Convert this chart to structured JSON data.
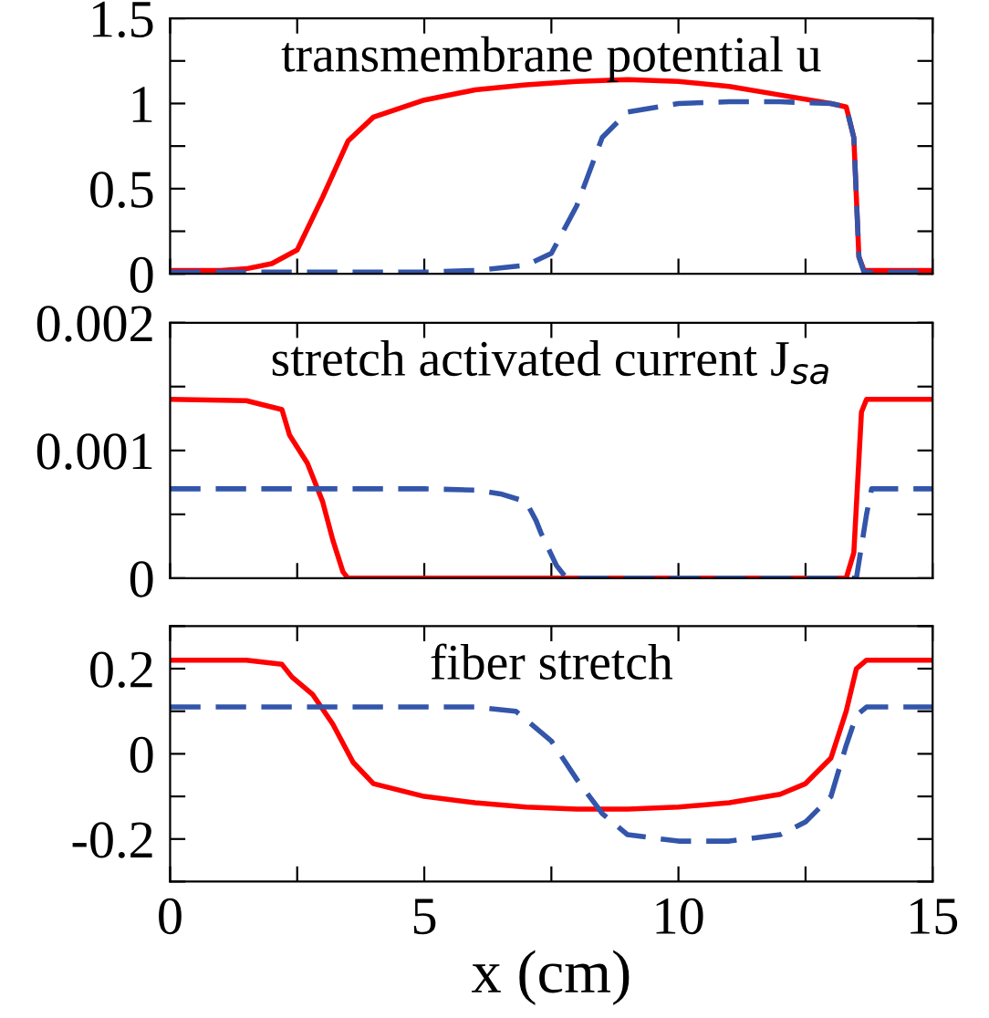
{
  "chart_data": [
    {
      "type": "line",
      "annotations": [
        "transmembrane potential u"
      ],
      "xlim": [
        0,
        15
      ],
      "xticks": [
        {
          "value": 0,
          "label": null
        },
        {
          "value": 2.5,
          "label": null
        },
        {
          "value": 5,
          "label": null
        },
        {
          "value": 7.5,
          "label": null
        },
        {
          "value": 10,
          "label": null
        },
        {
          "value": 12.5,
          "label": null
        },
        {
          "value": 15,
          "label": null
        }
      ],
      "ylim": [
        0,
        1.5
      ],
      "yticks": [
        0,
        {
          "value": 0.25,
          "label": null
        },
        0.5,
        {
          "value": 0.75,
          "label": null
        },
        1,
        {
          "value": 1.25,
          "label": null
        },
        1.5
      ],
      "tick_labels": "y",
      "grid": false,
      "legend": false,
      "series": [
        {
          "color": "#ff0000",
          "line_style": "solid",
          "x": [
            0,
            1,
            1.5,
            2,
            2.5,
            3,
            3.5,
            4,
            5,
            6,
            7,
            8,
            9,
            10,
            11,
            12,
            13,
            13.3,
            13.45,
            13.55,
            13.65,
            15
          ],
          "values": [
            0.02,
            0.02,
            0.03,
            0.06,
            0.14,
            0.45,
            0.78,
            0.92,
            1.02,
            1.08,
            1.11,
            1.13,
            1.14,
            1.13,
            1.1,
            1.05,
            1.0,
            0.98,
            0.8,
            0.1,
            0.02,
            0.02
          ]
        },
        {
          "color": "#3355aa",
          "line_style": "dashed",
          "x": [
            0,
            5,
            6,
            7,
            7.5,
            8,
            8.5,
            9,
            10,
            11,
            12,
            13,
            13.3,
            13.45,
            13.55,
            13.65,
            15
          ],
          "values": [
            0.01,
            0.01,
            0.02,
            0.05,
            0.12,
            0.4,
            0.8,
            0.95,
            1.0,
            1.01,
            1.01,
            1.0,
            0.98,
            0.8,
            0.1,
            0.01,
            0.01
          ]
        }
      ]
    },
    {
      "type": "line",
      "annotations": [
        "stretch activated current J$_{sa}$"
      ],
      "xlim": [
        0,
        15
      ],
      "xticks": [
        {
          "value": 0,
          "label": null
        },
        {
          "value": 2.5,
          "label": null
        },
        {
          "value": 5,
          "label": null
        },
        {
          "value": 7.5,
          "label": null
        },
        {
          "value": 10,
          "label": null
        },
        {
          "value": 12.5,
          "label": null
        },
        {
          "value": 15,
          "label": null
        }
      ],
      "ylim": [
        0,
        0.002
      ],
      "yticks": [
        0,
        {
          "value": 0.0005,
          "label": null
        },
        0.001,
        {
          "value": 0.0015,
          "label": null
        },
        0.002
      ],
      "tick_labels": "y",
      "grid": false,
      "legend": false,
      "series": [
        {
          "color": "#ff0000",
          "line_style": "solid",
          "x": [
            0,
            1.5,
            2.2,
            2.35,
            2.7,
            3,
            3.2,
            3.4,
            3.5,
            13.3,
            13.45,
            13.6,
            13.7,
            15
          ],
          "values": [
            0.0014,
            0.00139,
            0.00132,
            0.00112,
            0.0009,
            0.0006,
            0.0003,
            5e-05,
            0,
            0,
            0.0002,
            0.0013,
            0.0014,
            0.0014
          ]
        },
        {
          "color": "#3355aa",
          "line_style": "dashed",
          "x": [
            0,
            5,
            6,
            6.5,
            7,
            7.2,
            7.3,
            7.6,
            7.8,
            13.5,
            13.7,
            13.8,
            15
          ],
          "values": [
            0.0007,
            0.0007,
            0.00069,
            0.00066,
            0.0006,
            0.00045,
            0.00035,
            0.0001,
            0,
            0,
            0.0005,
            0.0007,
            0.0007
          ]
        }
      ]
    },
    {
      "type": "line",
      "annotations": [
        "fiber stretch"
      ],
      "xlabel": "x (cm)",
      "xlim": [
        0,
        15
      ],
      "xticks": [
        0,
        {
          "value": 2.5,
          "label": null
        },
        5,
        {
          "value": 7.5,
          "label": null
        },
        10,
        {
          "value": 12.5,
          "label": null
        },
        15
      ],
      "ylim": [
        -0.3,
        0.3
      ],
      "yticks": [
        {
          "value": -0.3,
          "label": null
        },
        -0.2,
        {
          "value": -0.1,
          "label": null
        },
        0,
        {
          "value": 0.1,
          "label": null
        },
        0.2,
        {
          "value": 0.3,
          "label": null
        }
      ],
      "grid": false,
      "legend": false,
      "series": [
        {
          "color": "#ff0000",
          "line_style": "solid",
          "x": [
            0,
            1.5,
            2.2,
            2.4,
            2.8,
            3.2,
            3.6,
            4,
            5,
            6,
            7,
            8,
            9,
            10,
            11,
            12,
            12.5,
            13,
            13.3,
            13.5,
            13.7,
            15
          ],
          "values": [
            0.22,
            0.22,
            0.21,
            0.18,
            0.14,
            0.07,
            -0.02,
            -0.07,
            -0.1,
            -0.115,
            -0.125,
            -0.13,
            -0.13,
            -0.125,
            -0.115,
            -0.095,
            -0.07,
            -0.01,
            0.1,
            0.2,
            0.22,
            0.22
          ]
        },
        {
          "color": "#3355aa",
          "line_style": "dashed",
          "x": [
            0,
            6,
            6.8,
            7.1,
            7.5,
            8,
            8.5,
            9,
            10,
            11,
            12,
            12.5,
            13,
            13.3,
            13.5,
            13.7,
            15
          ],
          "values": [
            0.11,
            0.11,
            0.1,
            0.07,
            0.03,
            -0.06,
            -0.14,
            -0.19,
            -0.205,
            -0.205,
            -0.19,
            -0.16,
            -0.1,
            0.02,
            0.09,
            0.11,
            0.11
          ]
        }
      ]
    }
  ]
}
